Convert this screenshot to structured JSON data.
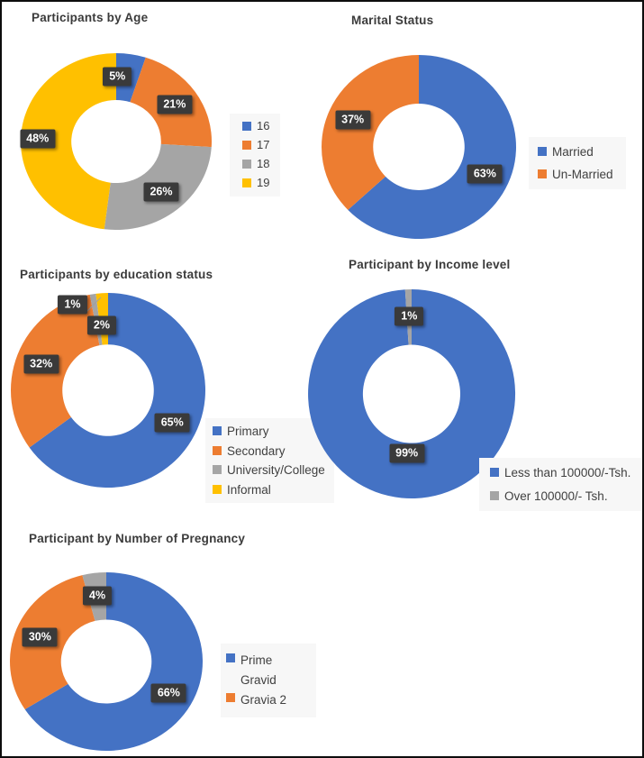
{
  "page": {
    "background": "#FFFFFF",
    "border_color": "#0D0D0D"
  },
  "styles": {
    "title_color": "#3B3B3B",
    "legend_text_color": "#404040",
    "legend_bg": "#F7F7F7",
    "data_label_bg": "#3A3A3A",
    "data_label_text": "#FFFFFF"
  },
  "chart_data": [
    {
      "type": "pie",
      "subtype": "donut",
      "title": "Participants by Age",
      "legend_position": "right",
      "slices": [
        {
          "label": "16",
          "value": 5,
          "percent_label": "5%",
          "color": "#4472C4"
        },
        {
          "label": "17",
          "value": 21,
          "percent_label": "21%",
          "color": "#ED7D31"
        },
        {
          "label": "18",
          "value": 26,
          "percent_label": "26%",
          "color": "#A5A5A5"
        },
        {
          "label": "19",
          "value": 48,
          "percent_label": "48%",
          "color": "#FFC000"
        }
      ]
    },
    {
      "type": "pie",
      "subtype": "donut",
      "title": "Marital Status",
      "legend_position": "right",
      "slices": [
        {
          "label": "Married",
          "value": 63,
          "percent_label": "63%",
          "color": "#4472C4"
        },
        {
          "label": "Un-Married",
          "value": 37,
          "percent_label": "37%",
          "color": "#ED7D31"
        }
      ]
    },
    {
      "type": "pie",
      "subtype": "donut",
      "title": "Participants by education status",
      "legend_position": "right",
      "slices": [
        {
          "label": "Primary",
          "value": 65,
          "percent_label": "65%",
          "color": "#4472C4"
        },
        {
          "label": "Secondary",
          "value": 32,
          "percent_label": "32%",
          "color": "#ED7D31"
        },
        {
          "label": "University/College",
          "value": 1,
          "percent_label": "1%",
          "color": "#A5A5A5"
        },
        {
          "label": "Informal",
          "value": 2,
          "percent_label": "2%",
          "color": "#FFC000"
        }
      ]
    },
    {
      "type": "pie",
      "subtype": "donut",
      "title": "Participant by Income level",
      "legend_position": "right",
      "slices": [
        {
          "label": "Less than 100000/-Tsh.",
          "value": 99,
          "percent_label": "99%",
          "color": "#4472C4"
        },
        {
          "label": "Over 100000/- Tsh.",
          "value": 1,
          "percent_label": "1%",
          "color": "#A5A5A5"
        }
      ]
    },
    {
      "type": "pie",
      "subtype": "donut",
      "title": "Participant by Number of Pregnancy",
      "legend_position": "right",
      "slices": [
        {
          "label": "Prime Gravid",
          "value": 66,
          "percent_label": "66%",
          "color": "#4472C4"
        },
        {
          "label": "Gravia 2",
          "value": 30,
          "percent_label": "30%",
          "color": "#ED7D31"
        },
        {
          "label": "",
          "value": 4,
          "percent_label": "4%",
          "color": "#A5A5A5",
          "in_legend": false
        }
      ]
    }
  ]
}
